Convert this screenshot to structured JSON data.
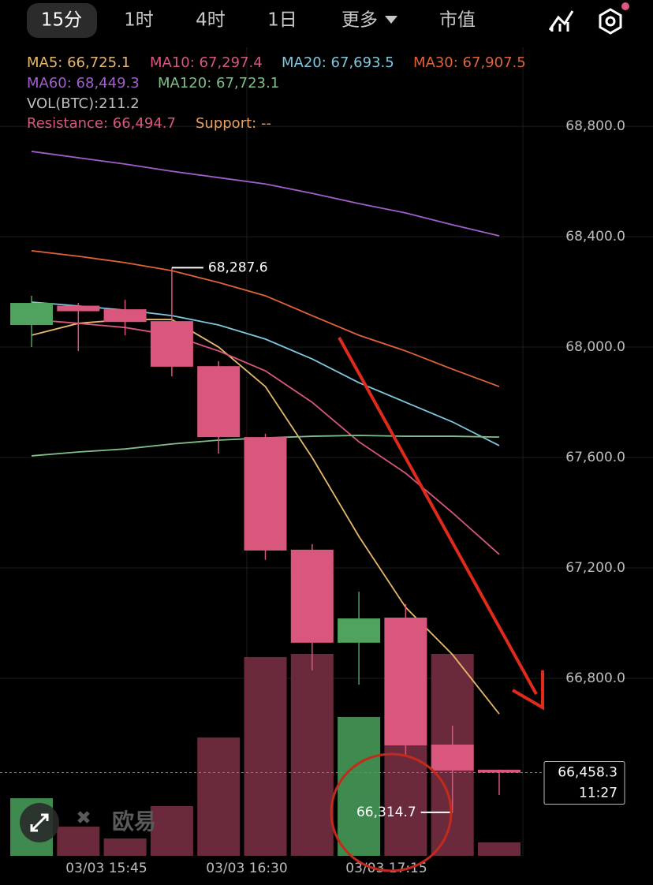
{
  "tabs": [
    "15分",
    "1时",
    "4时",
    "1日",
    "更多",
    "市值"
  ],
  "indicators": [
    {
      "text": "MA5: 66,725.1",
      "color": "#e8b86a"
    },
    {
      "text": "MA10: 67,297.4",
      "color": "#d9577c"
    },
    {
      "text": "MA20: 67,693.5",
      "color": "#7ec8e0"
    },
    {
      "text": "MA30: 67,907.5",
      "color": "#e0623a"
    },
    {
      "text": "MA60: 68,449.3",
      "color": "#a15fc9"
    },
    {
      "text": "MA120: 67,723.1",
      "color": "#7fbf8a"
    }
  ],
  "volume_label": "VOL(BTC):211.2",
  "resistance": "Resistance: 66,494.7",
  "support": "Support: --",
  "watermark": "欧易",
  "chart_data": {
    "type": "candlestick",
    "open": [
      68080,
      68150,
      68137,
      68094,
      67931,
      67674,
      67266,
      66929,
      67020,
      66560,
      66469
    ],
    "high": [
      68186,
      68160,
      68171,
      68287.6,
      67949,
      67686,
      67286,
      67114,
      67069,
      66629,
      66469
    ],
    "low": [
      68000,
      67986,
      68043,
      67894,
      67614,
      67229,
      66829,
      66777,
      66520,
      66314.7,
      66377
    ],
    "close": [
      68160,
      68130,
      68091,
      67929,
      67674,
      67263,
      66929,
      67017,
      66557,
      66466,
      66458.3
    ],
    "volume": [
      907,
      459,
      273,
      783,
      1864,
      3131,
      3180,
      2187,
      1739,
      3180,
      211.2
    ],
    "up_color": "#4fa35e",
    "down_color": "#d9577c",
    "up_volume_color": "#3f8a4f",
    "down_volume_color": "#6b2a3b",
    "series": [
      {
        "color": "#e8b86a",
        "values": [
          68043,
          68086,
          68100,
          68100,
          68000,
          67857,
          67600,
          67314,
          67057,
          66886,
          66671
        ]
      },
      {
        "color": "#d9577c",
        "values": [
          68100,
          68086,
          68071,
          68043,
          67986,
          67914,
          67800,
          67657,
          67543,
          67400,
          67249
        ]
      },
      {
        "color": "#7ec8e0",
        "values": [
          68163,
          68149,
          68134,
          68114,
          68080,
          68029,
          67957,
          67871,
          67800,
          67729,
          67643
        ]
      },
      {
        "color": "#e0623a",
        "values": [
          68349,
          68329,
          68306,
          68277,
          68234,
          68186,
          68114,
          68043,
          67986,
          67920,
          67857
        ]
      },
      {
        "color": "#a15fc9",
        "values": [
          68709,
          68686,
          68663,
          68637,
          68614,
          68591,
          68557,
          68520,
          68486,
          68443,
          68403
        ]
      },
      {
        "color": "#7fbf8a",
        "values": [
          67606,
          67620,
          67631,
          67649,
          67663,
          67671,
          67677,
          67680,
          67677,
          67677,
          67674
        ]
      }
    ],
    "x_labels": [
      "03/03 15:45",
      "03/03 16:30",
      "03/03 17:15"
    ],
    "ylim": [
      66157,
      69086
    ],
    "yticks": [
      {
        "value": 68800,
        "label": "68,800.0"
      },
      {
        "value": 68400,
        "label": "68,400.0"
      },
      {
        "value": 68000,
        "label": "68,000.0"
      },
      {
        "value": 67600,
        "label": "67,600.0"
      },
      {
        "value": 67200,
        "label": "67,200.0"
      },
      {
        "value": 66800,
        "label": "66,800.0"
      }
    ],
    "high_label": "68,287.6",
    "low_label": "66,314.7",
    "last_price": "66,458.3",
    "countdown": "11:27",
    "grid": true
  }
}
